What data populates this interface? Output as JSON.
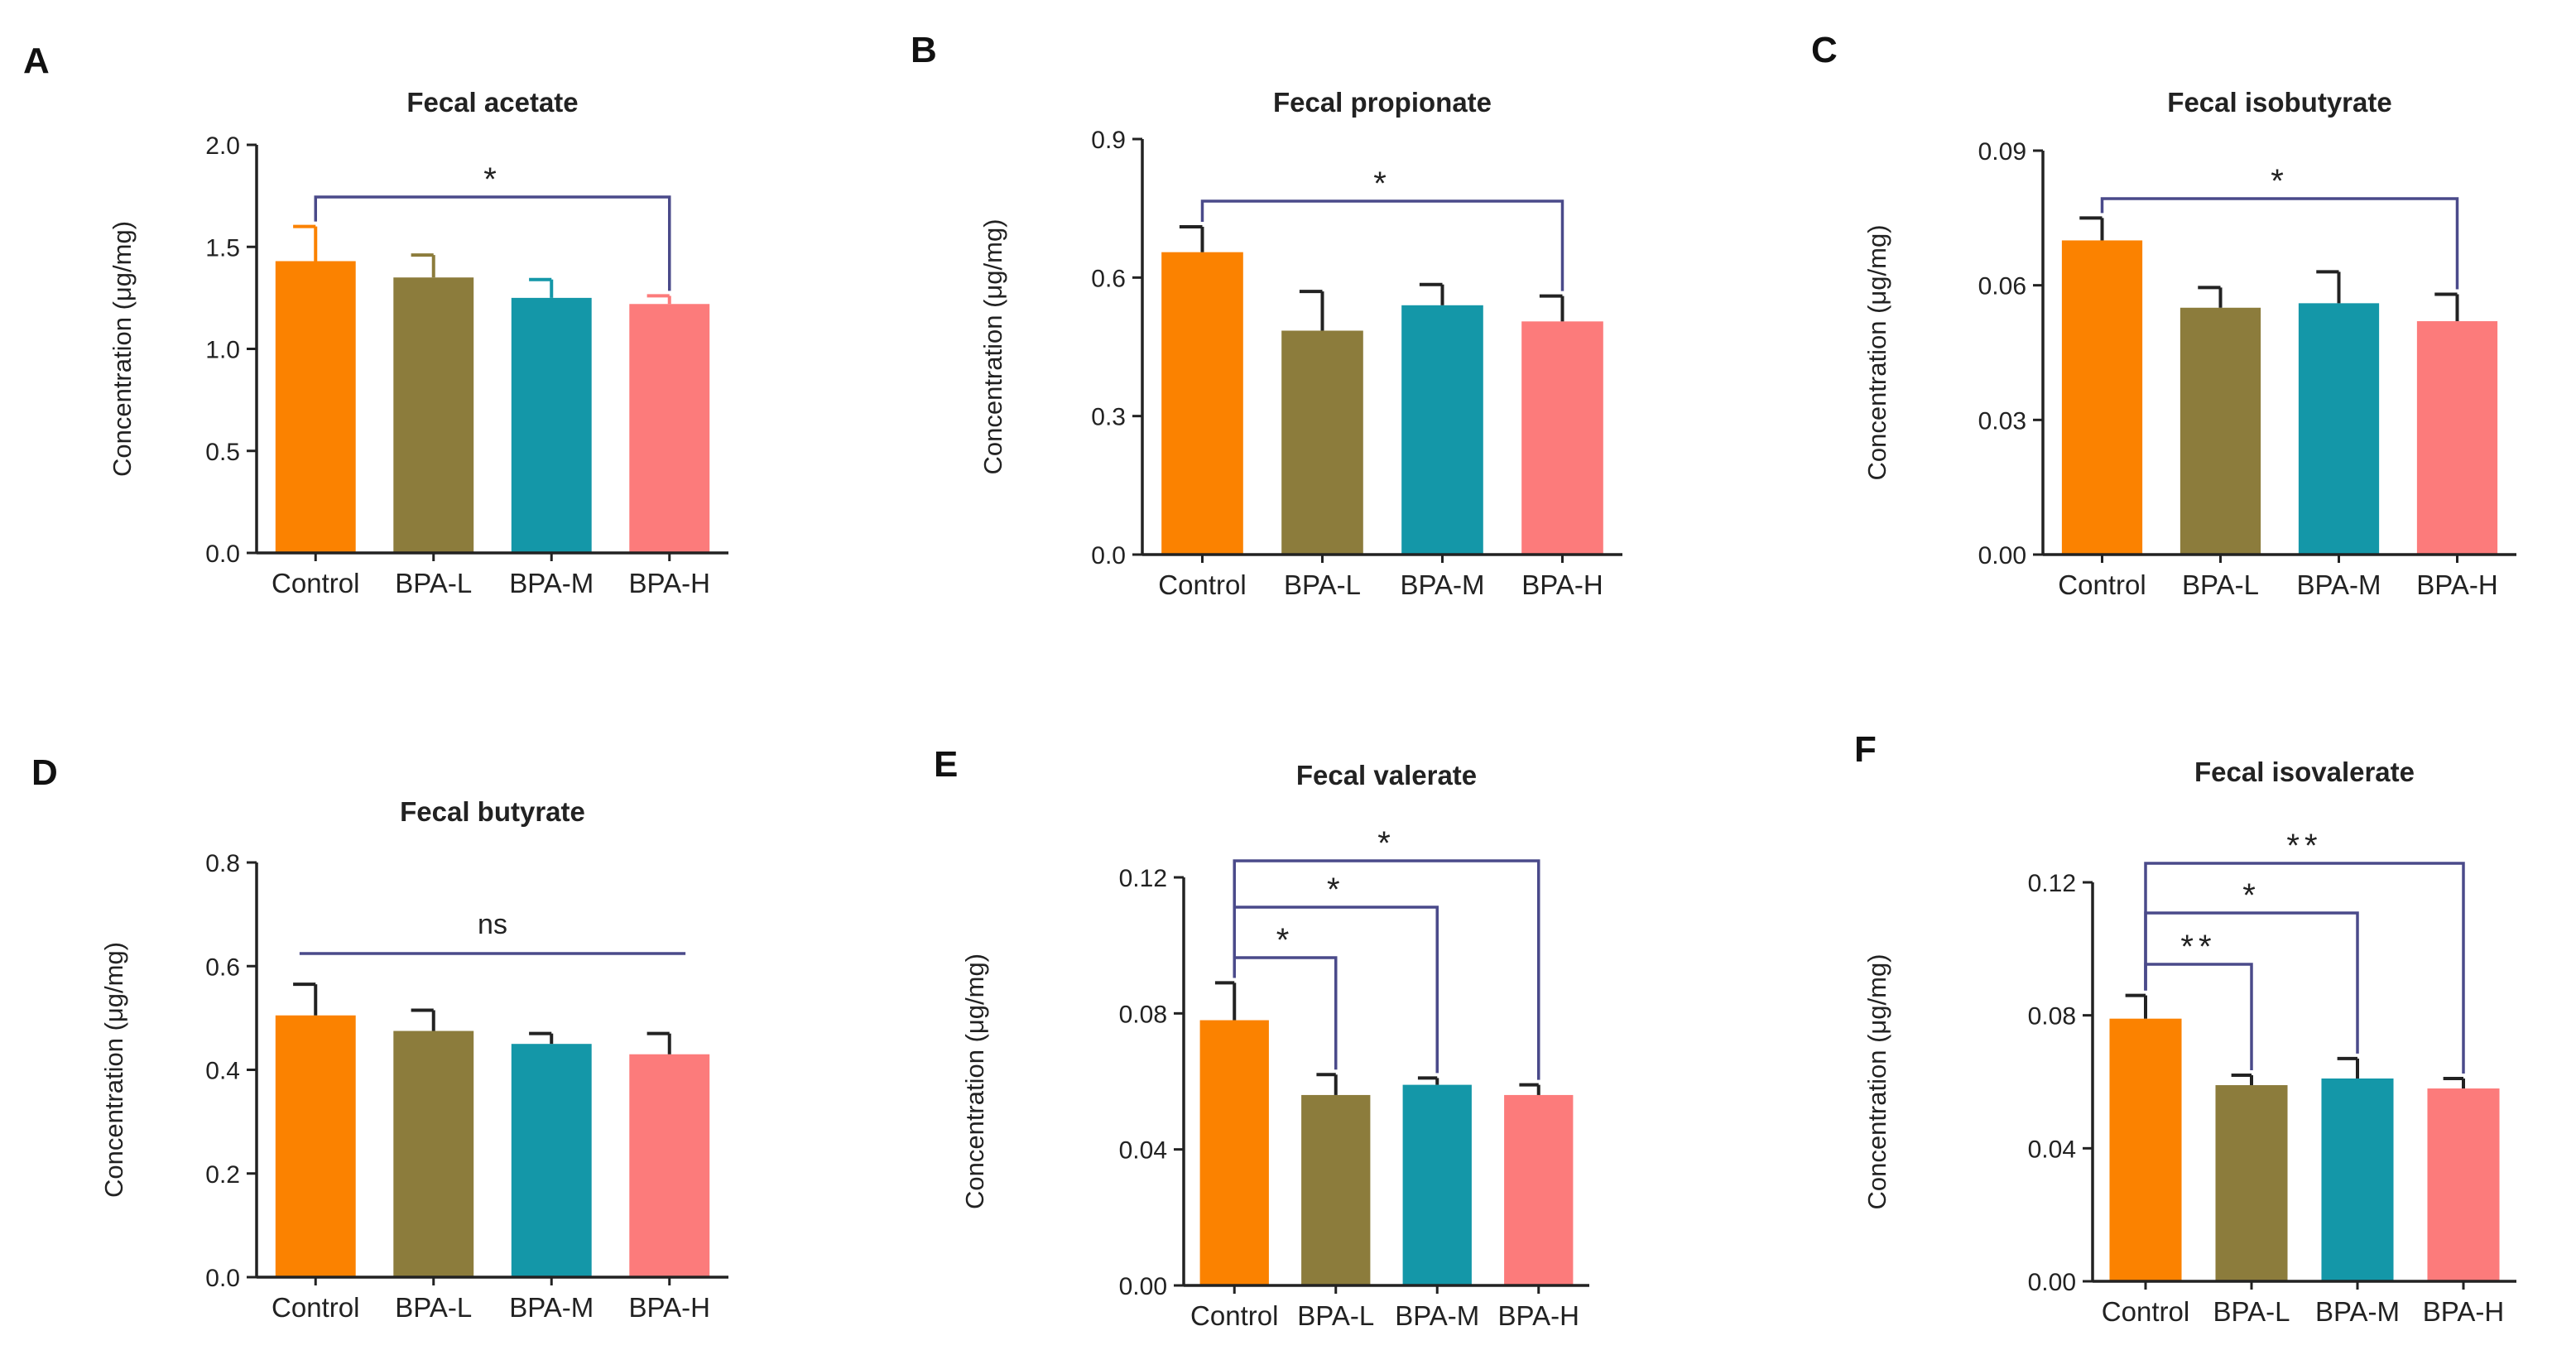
{
  "colors": {
    "Control": "#fb8200",
    "BPA-L": "#8c7c3c",
    "BPA-M": "#1497a8",
    "BPA-H": "#fc7b7b",
    "axis": "#222222",
    "bracket": "#4a4a8a"
  },
  "chart_data": [
    {
      "panel": "A",
      "type": "bar",
      "title": "Fecal acetate",
      "ylabel": "Concentration (μg/mg)",
      "categories": [
        "Control",
        "BPA-L",
        "BPA-M",
        "BPA-H"
      ],
      "values": [
        1.43,
        1.35,
        1.25,
        1.22
      ],
      "errors": [
        0.17,
        0.11,
        0.09,
        0.04
      ],
      "ylim": [
        0,
        2.0
      ],
      "yticks": [
        "0.0",
        "0.5",
        "1.0",
        "1.5",
        "2.0"
      ],
      "yticks_values": [
        0,
        0.5,
        1.0,
        1.5,
        2.0
      ],
      "significance": [
        {
          "from": 0,
          "to": 3,
          "label": "*"
        }
      ]
    },
    {
      "panel": "B",
      "type": "bar",
      "title": "Fecal propionate",
      "ylabel": "Concentration (μg/mg)",
      "categories": [
        "Control",
        "BPA-L",
        "BPA-M",
        "BPA-H"
      ],
      "values": [
        0.655,
        0.485,
        0.54,
        0.505
      ],
      "errors": [
        0.055,
        0.085,
        0.045,
        0.055
      ],
      "ylim": [
        0,
        0.9
      ],
      "yticks": [
        "0.0",
        "0.3",
        "0.6",
        "0.9"
      ],
      "yticks_values": [
        0,
        0.3,
        0.6,
        0.9
      ],
      "significance": [
        {
          "from": 0,
          "to": 3,
          "label": "*"
        }
      ]
    },
    {
      "panel": "C",
      "type": "bar",
      "title": "Fecal isobutyrate",
      "ylabel": "Concentration (μg/mg)",
      "categories": [
        "Control",
        "BPA-L",
        "BPA-M",
        "BPA-H"
      ],
      "values": [
        0.07,
        0.055,
        0.056,
        0.052
      ],
      "errors": [
        0.005,
        0.0045,
        0.007,
        0.006
      ],
      "ylim": [
        0,
        0.09
      ],
      "yticks": [
        "0.00",
        "0.03",
        "0.06",
        "0.09"
      ],
      "yticks_values": [
        0,
        0.03,
        0.06,
        0.09
      ],
      "significance": [
        {
          "from": 0,
          "to": 3,
          "label": "*"
        }
      ]
    },
    {
      "panel": "D",
      "type": "bar",
      "title": "Fecal butyrate",
      "ylabel": "Concentration (μg/mg)",
      "categories": [
        "Control",
        "BPA-L",
        "BPA-M",
        "BPA-H"
      ],
      "values": [
        0.505,
        0.475,
        0.45,
        0.43
      ],
      "errors": [
        0.06,
        0.04,
        0.02,
        0.04
      ],
      "ylim": [
        0,
        0.8
      ],
      "yticks": [
        "0.0",
        "0.2",
        "0.4",
        "0.6",
        "0.8"
      ],
      "yticks_values": [
        0,
        0.2,
        0.4,
        0.6,
        0.8
      ],
      "significance": [
        {
          "from": 0,
          "to": 3,
          "label": "ns",
          "style": "line"
        }
      ]
    },
    {
      "panel": "E",
      "type": "bar",
      "title": "Fecal valerate",
      "ylabel": "Concentration (μg/mg)",
      "categories": [
        "Control",
        "BPA-L",
        "BPA-M",
        "BPA-H"
      ],
      "values": [
        0.078,
        0.056,
        0.059,
        0.056
      ],
      "errors": [
        0.011,
        0.006,
        0.002,
        0.003
      ],
      "ylim": [
        0,
        0.12
      ],
      "yticks": [
        "0.00",
        "0.04",
        "0.08",
        "0.12"
      ],
      "yticks_values": [
        0,
        0.04,
        0.08,
        0.12
      ],
      "significance": [
        {
          "from": 0,
          "to": 1,
          "label": "*"
        },
        {
          "from": 0,
          "to": 2,
          "label": "*"
        },
        {
          "from": 0,
          "to": 3,
          "label": "*"
        }
      ]
    },
    {
      "panel": "F",
      "type": "bar",
      "title": "Fecal isovalerate",
      "ylabel": "Concentration (μg/mg)",
      "categories": [
        "Control",
        "BPA-L",
        "BPA-M",
        "BPA-H"
      ],
      "values": [
        0.079,
        0.059,
        0.061,
        0.058
      ],
      "errors": [
        0.007,
        0.003,
        0.006,
        0.003
      ],
      "ylim": [
        0,
        0.12
      ],
      "yticks": [
        "0.00",
        "0.04",
        "0.08",
        "0.12"
      ],
      "yticks_values": [
        0,
        0.04,
        0.08,
        0.12
      ],
      "significance": [
        {
          "from": 0,
          "to": 1,
          "label": "**"
        },
        {
          "from": 0,
          "to": 2,
          "label": "*"
        },
        {
          "from": 0,
          "to": 3,
          "label": "**"
        }
      ]
    }
  ]
}
